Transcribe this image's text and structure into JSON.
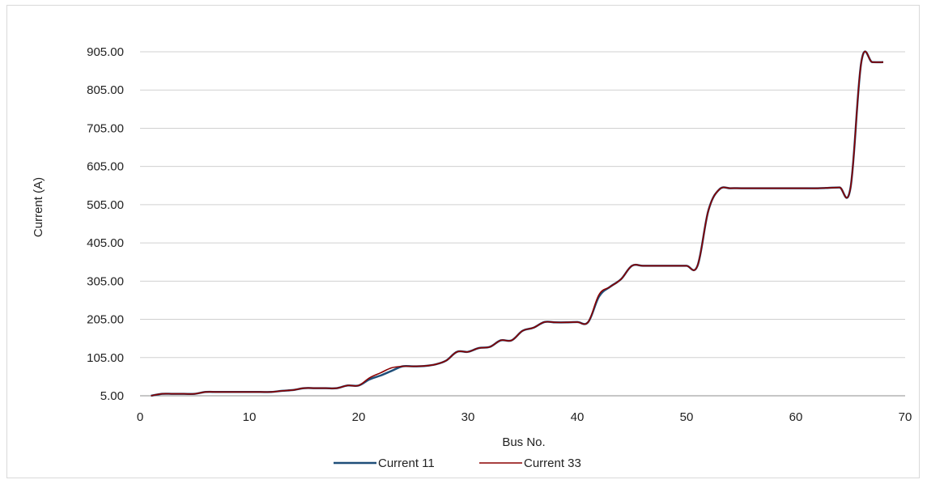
{
  "chart_data": {
    "type": "line",
    "title": "",
    "xlabel": "Bus No.",
    "ylabel": "Current (A)",
    "xlim": [
      0,
      70
    ],
    "ylim": [
      5,
      905
    ],
    "x_ticks": [
      0,
      10,
      20,
      30,
      40,
      50,
      60,
      70
    ],
    "y_ticks": [
      "5.00",
      "105.00",
      "205.00",
      "305.00",
      "405.00",
      "505.00",
      "605.00",
      "705.00",
      "805.00",
      "905.00"
    ],
    "grid": "horizontal",
    "legend_position": "bottom",
    "x": [
      1,
      2,
      3,
      4,
      5,
      6,
      7,
      8,
      9,
      10,
      11,
      12,
      13,
      14,
      15,
      16,
      17,
      18,
      19,
      20,
      21,
      22,
      23,
      24,
      25,
      26,
      27,
      28,
      29,
      30,
      31,
      32,
      33,
      34,
      35,
      36,
      37,
      38,
      39,
      40,
      41,
      42,
      43,
      44,
      45,
      46,
      47,
      48,
      49,
      50,
      51,
      52,
      53,
      54,
      55,
      56,
      57,
      58,
      59,
      60,
      61,
      62,
      63,
      64,
      65,
      66,
      67,
      68
    ],
    "series": [
      {
        "name": "Current 11",
        "color": "#1f4e79",
        "values": [
          5,
          10,
          10,
          10,
          10,
          15,
          15,
          15,
          15,
          15,
          15,
          15,
          18,
          20,
          25,
          25,
          25,
          25,
          32,
          32,
          48,
          58,
          70,
          82,
          82,
          83,
          87,
          97,
          120,
          120,
          130,
          133,
          150,
          150,
          175,
          183,
          198,
          197,
          197,
          198,
          198,
          265,
          290,
          310,
          345,
          345,
          345,
          345,
          345,
          345,
          345,
          490,
          545,
          548,
          548,
          548,
          548,
          548,
          548,
          548,
          548,
          548,
          549,
          550,
          549,
          880,
          878,
          878
        ]
      },
      {
        "name": "Current 33",
        "color": "#8b0000",
        "values": [
          5,
          10,
          10,
          10,
          10,
          15,
          15,
          15,
          15,
          15,
          15,
          15,
          18,
          20,
          25,
          25,
          25,
          25,
          32,
          32,
          52,
          65,
          78,
          82,
          82,
          83,
          87,
          97,
          120,
          120,
          130,
          133,
          150,
          150,
          175,
          183,
          198,
          197,
          197,
          198,
          198,
          270,
          290,
          310,
          345,
          345,
          345,
          345,
          345,
          345,
          345,
          490,
          545,
          548,
          548,
          548,
          548,
          548,
          548,
          548,
          548,
          548,
          549,
          550,
          549,
          880,
          878,
          878
        ]
      }
    ]
  }
}
